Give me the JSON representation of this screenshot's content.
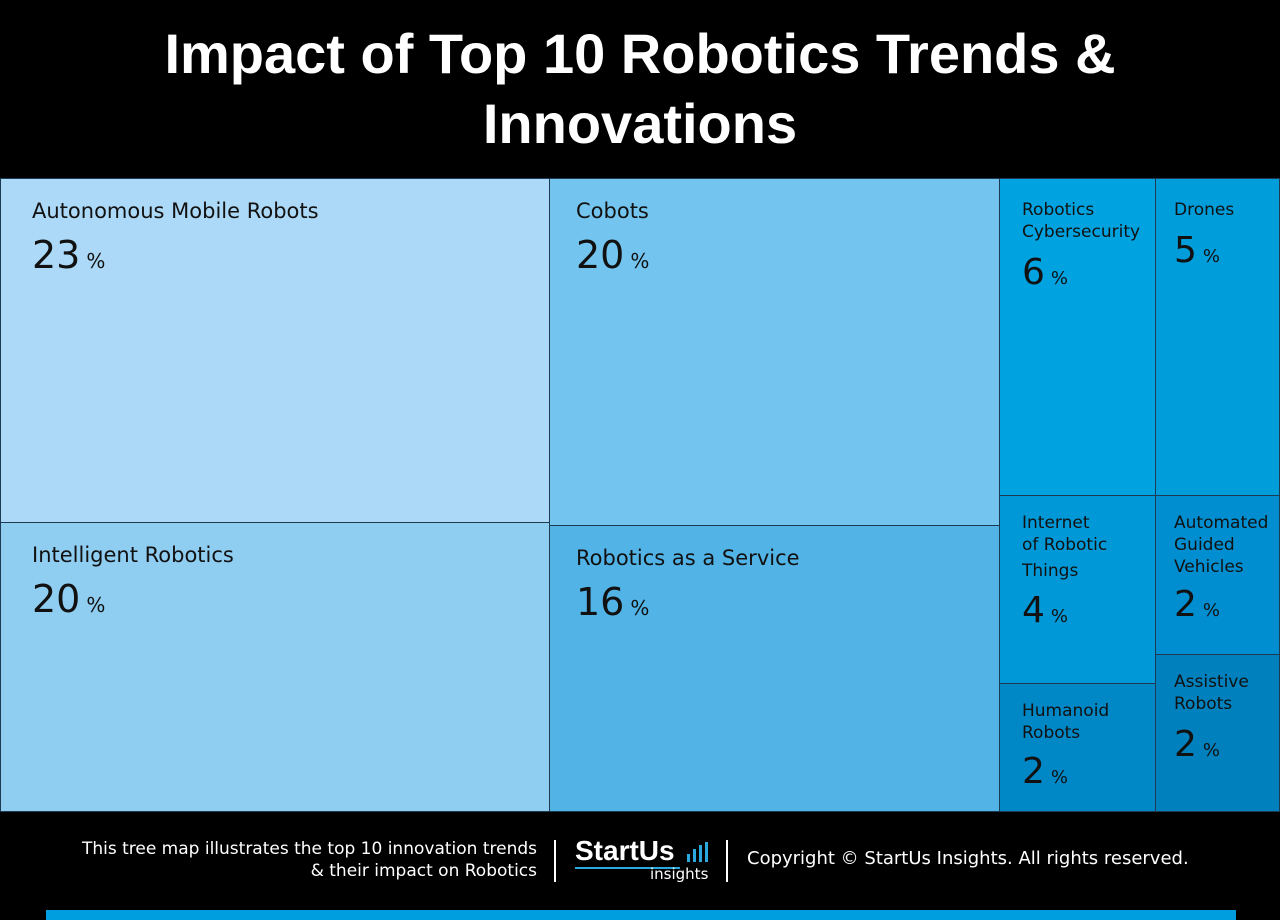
{
  "header": {
    "title": "Impact of Top 10 Robotics Trends & Innovations"
  },
  "chart_data": {
    "type": "treemap",
    "title": "Impact of Top 10 Robotics Trends & Innovations",
    "unit": "%",
    "items": [
      {
        "name": "Autonomous Mobile Robots",
        "value": 23,
        "color": "#acd9f7"
      },
      {
        "name": "Intelligent Robotics",
        "value": 20,
        "color": "#8fcdf1"
      },
      {
        "name": "Cobots",
        "value": 20,
        "color": "#73c4ee"
      },
      {
        "name": "Robotics as a Service",
        "value": 16,
        "color": "#52b3e6"
      },
      {
        "name": "Robotics Cybersecurity",
        "value": 6,
        "color": "#00a2e0"
      },
      {
        "name": "Drones",
        "value": 5,
        "color": "#009ddb"
      },
      {
        "name": "Internet of Robotic Things",
        "value": 4,
        "color": "#0098d7"
      },
      {
        "name": "Automated Guided Vehicles",
        "value": 2,
        "color": "#008ed0"
      },
      {
        "name": "Humanoid Robots",
        "value": 2,
        "color": "#0087c6"
      },
      {
        "name": "Assistive Robots",
        "value": 2,
        "color": "#0080bc"
      }
    ]
  },
  "labels": {
    "amr": {
      "line1": "Autonomous Mobile Robots",
      "value": "23"
    },
    "ir": {
      "line1": "Intelligent Robotics",
      "value": "20"
    },
    "cobots": {
      "line1": "Cobots",
      "value": "20"
    },
    "raas": {
      "line1": "Robotics as a Service",
      "value": "16"
    },
    "cyber": {
      "line1": "Robotics",
      "line2": "Cybersecurity",
      "value": "6"
    },
    "drones": {
      "line1": "Drones",
      "value": "5"
    },
    "iort": {
      "line1": "Internet",
      "line2": "of Robotic",
      "line3": "Things",
      "value": "4"
    },
    "agv": {
      "line1": "Automated",
      "line2": "Guided",
      "line3": "Vehicles",
      "value": "2"
    },
    "humanoid": {
      "line1": "Humanoid",
      "line2": "Robots",
      "value": "2"
    },
    "assistive": {
      "line1": "Assistive",
      "line2": "Robots",
      "value": "2"
    },
    "pct": "%"
  },
  "footer": {
    "description_line1": "This tree map illustrates the top 10 innovation trends",
    "description_line2": "& their impact on Robotics",
    "logo_main": "StartUs",
    "logo_sub": "insights",
    "copyright": "Copyright © StartUs Insights. All rights reserved."
  },
  "colors": {
    "background": "#000000",
    "accent": "#009ede"
  }
}
